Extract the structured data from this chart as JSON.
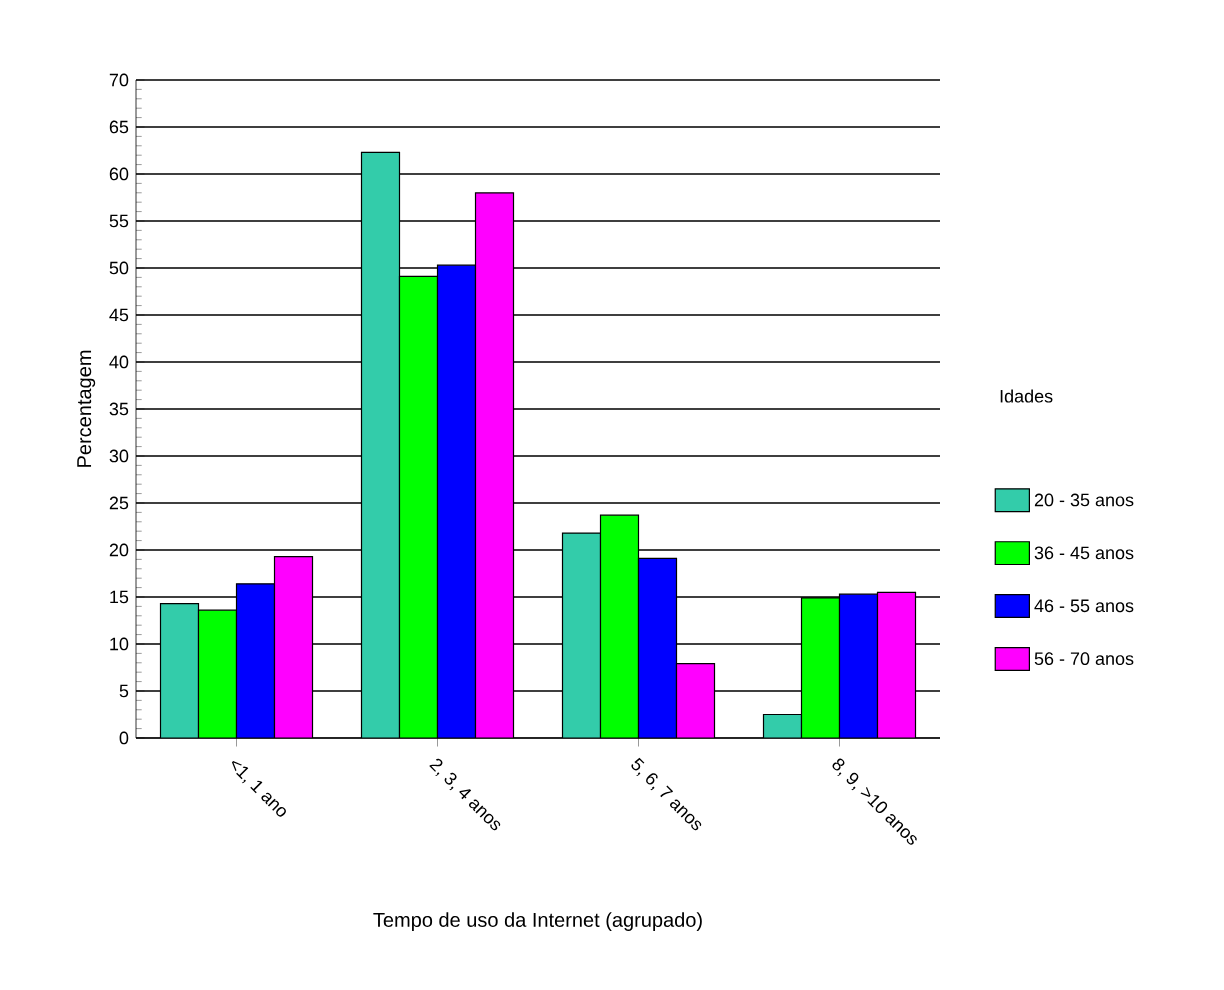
{
  "chart_data": {
    "type": "bar",
    "xlabel": "Tempo de uso da Internet (agrupado)",
    "ylabel": "Percentagem",
    "legend_title": "Idades",
    "categories": [
      "<1, 1 ano",
      "2, 3, 4 anos",
      "5, 6, 7 anos",
      "8, 9, >10 anos"
    ],
    "series": [
      {
        "name": "20 - 35 anos",
        "color": "#33ccaa",
        "values": [
          14.3,
          62.3,
          21.8,
          2.5
        ]
      },
      {
        "name": "36 - 45 anos",
        "color": "#00ff00",
        "values": [
          13.6,
          49.1,
          23.7,
          14.9
        ]
      },
      {
        "name": "46 - 55 anos",
        "color": "#0000ff",
        "values": [
          16.4,
          50.3,
          19.1,
          15.3
        ]
      },
      {
        "name": "56 - 70 anos",
        "color": "#ff00ff",
        "values": [
          19.3,
          58,
          7.9,
          15.5
        ]
      }
    ],
    "ylim": [
      0,
      70
    ],
    "yticks": [
      0,
      5,
      10,
      15,
      20,
      25,
      30,
      35,
      40,
      45,
      50,
      55,
      60,
      65,
      70
    ],
    "grid": "y",
    "legend": "right"
  }
}
